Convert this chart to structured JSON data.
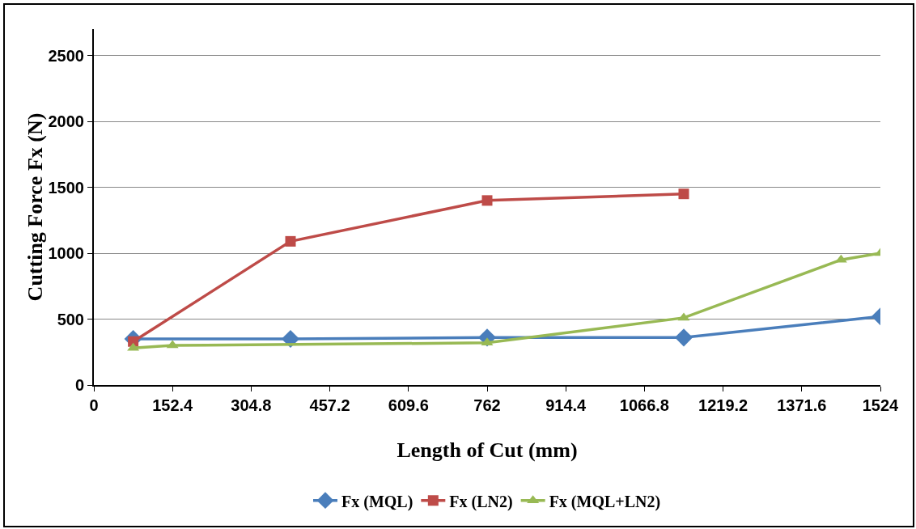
{
  "chart_data": {
    "type": "line",
    "xlabel": "Length of Cut (mm)",
    "ylabel": "Cutting Force Fx (N)",
    "xlim": [
      0,
      1524
    ],
    "xticks": [
      0,
      152.4,
      304.8,
      457.2,
      609.6,
      762,
      914.4,
      1066.8,
      1219.2,
      1371.6,
      1524
    ],
    "ylim": [
      0,
      2700
    ],
    "yticks": [
      0,
      500,
      1000,
      1500,
      2000,
      2500
    ],
    "grid": "y",
    "legend": "bottom",
    "series": [
      {
        "name": "Fx (MQL)",
        "color": "#4a7ebb",
        "marker": "diamond",
        "x": [
          76.2,
          381,
          762,
          1143,
          1524
        ],
        "values": [
          350,
          350,
          360,
          360,
          520
        ]
      },
      {
        "name": "Fx (LN2)",
        "color": "#be4b48",
        "marker": "square",
        "x": [
          76.2,
          381,
          762,
          1143
        ],
        "values": [
          330,
          1090,
          1400,
          1450
        ]
      },
      {
        "name": "Fx (MQL+LN2)",
        "color": "#98b954",
        "marker": "triangle",
        "x": [
          76.2,
          152.4,
          762,
          1143,
          1447.8,
          1524
        ],
        "values": [
          280,
          300,
          320,
          510,
          950,
          1000
        ]
      }
    ]
  }
}
